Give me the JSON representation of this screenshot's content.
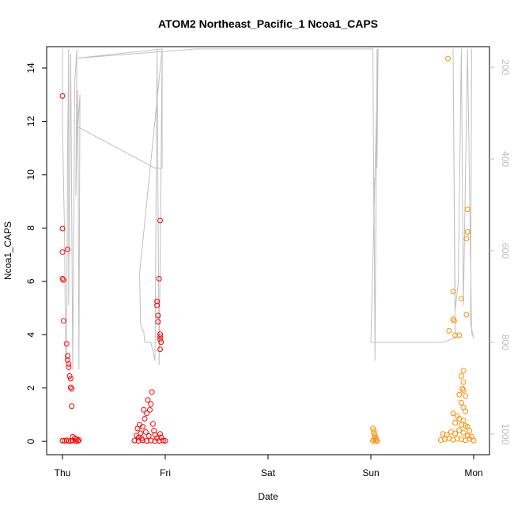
{
  "chart_data": {
    "type": "scatter",
    "title": "ATOM2 Northeast_Pacific_1 Ncoa1_CAPS",
    "xlabel": "Date",
    "ylabel": "Ncoa1_CAPS",
    "x_ticks": [
      "Thu",
      "Fri",
      "Sat",
      "Sun",
      "Mon"
    ],
    "x_range": [
      -0.2,
      4.2
    ],
    "ylim": [
      -0.5,
      14.8
    ],
    "y_ticks": [
      0,
      2,
      4,
      6,
      8,
      10,
      12,
      14
    ],
    "y2_range": [
      1045,
      155
    ],
    "y2_ticks": [
      200,
      400,
      600,
      800,
      1000
    ],
    "colors": {
      "series_a": "#ff0000",
      "series_b": "#ff8c00",
      "depth_line": "#c0c0c0"
    },
    "series": [
      {
        "color": "series_a",
        "points": [
          [
            0.0,
            12.95
          ],
          [
            0.0,
            7.98
          ],
          [
            0.0,
            7.1
          ],
          [
            0.0,
            6.1
          ],
          [
            0.01,
            6.05
          ],
          [
            0.01,
            4.52
          ],
          [
            0.04,
            3.66
          ],
          [
            0.05,
            7.2
          ],
          [
            0.05,
            3.2
          ],
          [
            0.05,
            3.05
          ],
          [
            0.06,
            2.9
          ],
          [
            0.06,
            2.78
          ],
          [
            0.07,
            2.45
          ],
          [
            0.08,
            2.35
          ],
          [
            0.08,
            2.02
          ],
          [
            0.09,
            1.97
          ],
          [
            0.09,
            1.32
          ],
          [
            0.1,
            0.17
          ],
          [
            0.12,
            0.12
          ],
          [
            0.14,
            0.08
          ],
          [
            0.16,
            0.05
          ],
          [
            0.0,
            0.03
          ],
          [
            0.02,
            0.02
          ],
          [
            0.04,
            0.04
          ],
          [
            0.06,
            0.01
          ],
          [
            0.08,
            0.02
          ],
          [
            0.1,
            0.03
          ],
          [
            0.13,
            0.01
          ],
          [
            0.15,
            0.02
          ],
          [
            0.72,
            0.22
          ],
          [
            0.73,
            0.48
          ],
          [
            0.74,
            0.15
          ],
          [
            0.75,
            0.62
          ],
          [
            0.76,
            0.3
          ],
          [
            0.77,
            0.1
          ],
          [
            0.78,
            0.55
          ],
          [
            0.79,
            1.18
          ],
          [
            0.8,
            0.85
          ],
          [
            0.81,
            0.35
          ],
          [
            0.82,
            1.05
          ],
          [
            0.83,
            1.55
          ],
          [
            0.84,
            0.2
          ],
          [
            0.85,
            1.18
          ],
          [
            0.86,
            1.4
          ],
          [
            0.87,
            1.85
          ],
          [
            0.88,
            0.65
          ],
          [
            0.89,
            0.4
          ],
          [
            0.9,
            0.25
          ],
          [
            0.92,
            0.12
          ],
          [
            0.95,
            0.28
          ],
          [
            0.92,
            5.25
          ],
          [
            0.92,
            5.1
          ],
          [
            0.93,
            4.72
          ],
          [
            0.93,
            4.48
          ],
          [
            0.94,
            6.1
          ],
          [
            0.95,
            8.28
          ],
          [
            0.95,
            4.02
          ],
          [
            0.95,
            3.92
          ],
          [
            0.95,
            3.82
          ],
          [
            0.96,
            3.72
          ],
          [
            0.95,
            3.45
          ],
          [
            0.96,
            0.15
          ],
          [
            0.7,
            0.03
          ],
          [
            0.74,
            0.02
          ],
          [
            0.78,
            0.04
          ],
          [
            0.82,
            0.02
          ],
          [
            0.86,
            0.03
          ],
          [
            0.9,
            0.01
          ],
          [
            0.94,
            0.02
          ],
          [
            0.98,
            0.03
          ],
          [
            1.0,
            0.02
          ]
        ]
      },
      {
        "color": "series_b",
        "points": [
          [
            3.02,
            0.48
          ],
          [
            3.03,
            0.38
          ],
          [
            3.03,
            0.3
          ],
          [
            3.04,
            0.22
          ],
          [
            3.04,
            0.15
          ],
          [
            3.05,
            0.1
          ],
          [
            3.03,
            0.06
          ],
          [
            3.02,
            0.02
          ],
          [
            3.05,
            0.03
          ],
          [
            3.06,
            0.01
          ],
          [
            3.75,
            14.35
          ],
          [
            3.76,
            4.15
          ],
          [
            3.8,
            5.62
          ],
          [
            3.8,
            4.58
          ],
          [
            3.81,
            4.52
          ],
          [
            3.82,
            3.98
          ],
          [
            3.86,
            3.98
          ],
          [
            3.93,
            4.75
          ],
          [
            3.93,
            7.6
          ],
          [
            3.94,
            7.85
          ],
          [
            3.94,
            8.7
          ],
          [
            3.88,
            5.35
          ],
          [
            3.9,
            2.65
          ],
          [
            3.88,
            2.45
          ],
          [
            3.9,
            2.22
          ],
          [
            3.89,
            1.98
          ],
          [
            3.9,
            1.92
          ],
          [
            3.86,
            1.75
          ],
          [
            3.92,
            1.7
          ],
          [
            3.88,
            1.45
          ],
          [
            3.9,
            1.28
          ],
          [
            3.92,
            1.12
          ],
          [
            3.8,
            1.05
          ],
          [
            3.84,
            0.95
          ],
          [
            3.86,
            0.85
          ],
          [
            3.9,
            0.78
          ],
          [
            3.82,
            0.7
          ],
          [
            3.88,
            0.62
          ],
          [
            3.92,
            0.58
          ],
          [
            3.94,
            0.55
          ],
          [
            3.96,
            0.4
          ],
          [
            3.7,
            0.28
          ],
          [
            3.74,
            0.25
          ],
          [
            3.78,
            0.35
          ],
          [
            3.82,
            0.3
          ],
          [
            3.86,
            0.42
          ],
          [
            3.9,
            0.32
          ],
          [
            3.94,
            0.2
          ],
          [
            3.98,
            0.18
          ],
          [
            3.68,
            0.05
          ],
          [
            3.72,
            0.08
          ],
          [
            3.76,
            0.12
          ],
          [
            3.8,
            0.06
          ],
          [
            3.84,
            0.1
          ],
          [
            3.88,
            0.07
          ],
          [
            3.92,
            0.04
          ],
          [
            3.96,
            0.09
          ],
          [
            4.0,
            0.03
          ]
        ]
      }
    ],
    "depth_line": {
      "color": "depth_line",
      "points": [
        [
          0.0,
          160
        ],
        [
          0.0,
          330
        ],
        [
          0.02,
          560
        ],
        [
          0.03,
          820
        ],
        [
          0.04,
          840
        ],
        [
          0.05,
          380
        ],
        [
          0.06,
          160
        ],
        [
          0.06,
          720
        ],
        [
          0.08,
          170
        ],
        [
          0.1,
          860
        ],
        [
          0.12,
          230
        ],
        [
          0.14,
          160
        ],
        [
          0.13,
          480
        ],
        [
          0.15,
          250
        ],
        [
          0.16,
          860
        ],
        [
          0.17,
          260
        ],
        [
          0.15,
          330
        ],
        [
          0.9,
          420
        ],
        [
          0.97,
          420
        ],
        [
          0.97,
          160
        ],
        [
          0.75,
          650
        ],
        [
          0.76,
          760
        ],
        [
          0.77,
          770
        ],
        [
          0.79,
          775
        ],
        [
          0.8,
          800
        ],
        [
          0.86,
          800
        ],
        [
          0.9,
          840
        ],
        [
          0.92,
          160
        ],
        [
          0.94,
          850
        ],
        [
          0.97,
          160
        ],
        [
          0.15,
          180
        ],
        [
          1.3,
          160
        ],
        [
          3.02,
          160
        ],
        [
          3.03,
          560
        ],
        [
          3.03,
          440
        ],
        [
          3.04,
          840
        ],
        [
          3.06,
          160
        ],
        [
          3.06,
          420
        ],
        [
          3.07,
          160
        ],
        [
          3.0,
          800
        ],
        [
          3.7,
          800
        ],
        [
          3.82,
          790
        ],
        [
          3.8,
          160
        ],
        [
          3.82,
          730
        ],
        [
          3.85,
          670
        ],
        [
          3.88,
          160
        ],
        [
          3.9,
          720
        ],
        [
          3.94,
          160
        ],
        [
          3.98,
          780
        ],
        [
          4.0,
          790
        ],
        [
          3.97,
          760
        ],
        [
          3.98,
          160
        ]
      ]
    }
  }
}
